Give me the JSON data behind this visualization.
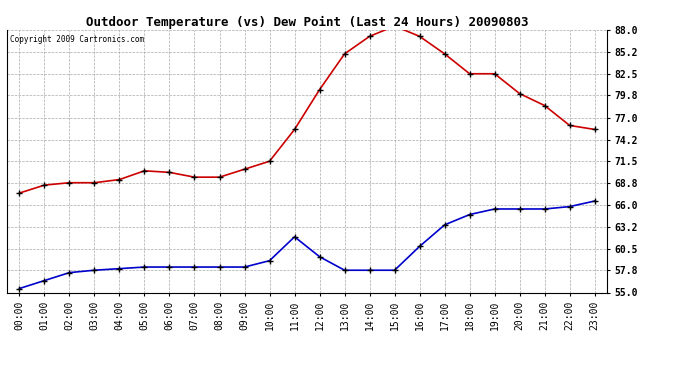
{
  "title": "Outdoor Temperature (vs) Dew Point (Last 24 Hours) 20090803",
  "copyright_text": "Copyright 2009 Cartronics.com",
  "x_labels": [
    "00:00",
    "01:00",
    "02:00",
    "03:00",
    "04:00",
    "05:00",
    "06:00",
    "07:00",
    "08:00",
    "09:00",
    "10:00",
    "11:00",
    "12:00",
    "13:00",
    "14:00",
    "15:00",
    "16:00",
    "17:00",
    "18:00",
    "19:00",
    "20:00",
    "21:00",
    "22:00",
    "23:00"
  ],
  "temp_data": [
    67.5,
    68.5,
    68.8,
    68.8,
    69.2,
    70.3,
    70.1,
    69.5,
    69.5,
    70.5,
    71.5,
    75.5,
    80.5,
    85.0,
    87.2,
    88.5,
    87.2,
    85.0,
    82.5,
    82.5,
    80.0,
    78.5,
    76.0,
    75.5
  ],
  "dew_data": [
    55.5,
    56.5,
    57.5,
    57.8,
    58.0,
    58.2,
    58.2,
    58.2,
    58.2,
    58.2,
    59.0,
    62.0,
    59.5,
    57.8,
    57.8,
    57.8,
    60.8,
    63.5,
    64.8,
    65.5,
    65.5,
    65.5,
    65.8,
    66.5
  ],
  "temp_color": "#cc0000",
  "dew_color": "#0000cc",
  "ymin": 55.0,
  "ymax": 88.0,
  "yticks": [
    55.0,
    57.8,
    60.5,
    63.2,
    66.0,
    68.8,
    71.5,
    74.2,
    77.0,
    79.8,
    82.5,
    85.2,
    88.0
  ],
  "background_color": "#ffffff",
  "plot_bg_color": "#ffffff",
  "grid_color": "#aaaaaa",
  "title_fontsize": 9,
  "tick_fontsize": 7,
  "copyright_fontsize": 5.5
}
